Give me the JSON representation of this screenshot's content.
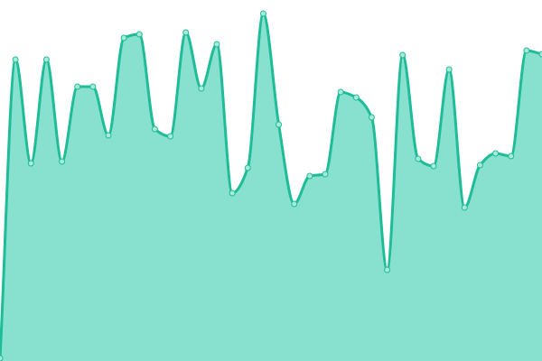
{
  "chart_data": {
    "type": "area",
    "title": "",
    "xlabel": "",
    "ylabel": "",
    "x": [
      0,
      1,
      2,
      3,
      4,
      5,
      6,
      7,
      8,
      9,
      10,
      11,
      12,
      13,
      14,
      15,
      16,
      17,
      18,
      19,
      20,
      21,
      22,
      23,
      24,
      25,
      26,
      27,
      28,
      29,
      30,
      31,
      32,
      33,
      34,
      35
    ],
    "values": [
      3,
      334,
      219,
      334,
      221,
      304,
      304,
      250,
      358,
      362,
      257,
      249,
      364,
      302,
      351,
      186,
      214,
      385,
      262,
      174,
      205,
      207,
      298,
      292,
      270,
      101,
      339,
      224,
      216,
      323,
      170,
      217,
      230,
      227,
      344,
      340
    ],
    "ylim": [
      0,
      400
    ],
    "grid": false,
    "axes_visible": false,
    "curve": "smooth",
    "markers": true,
    "colors": {
      "line": "#1fbc98",
      "fill": "#88e0cf",
      "marker_fill": "#a8ead9",
      "marker_stroke": "#1fbc98"
    }
  }
}
